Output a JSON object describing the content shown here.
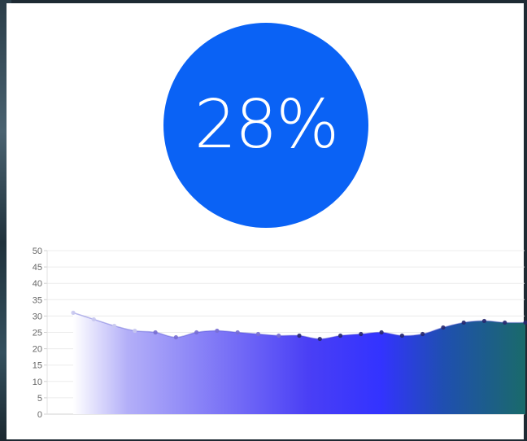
{
  "gauge": {
    "value_label": "28%",
    "value": 28,
    "color": "#0a62f5"
  },
  "chart_data": {
    "type": "area",
    "title": "",
    "xlabel": "",
    "ylabel": "",
    "ylim": [
      0,
      50
    ],
    "yticks": [
      0,
      5,
      10,
      15,
      20,
      25,
      30,
      35,
      40,
      45,
      50
    ],
    "grid": true,
    "series": [
      {
        "values": [
          31,
          29,
          27,
          25.5,
          25,
          23.5,
          25,
          25.5,
          25,
          24.5,
          24,
          24,
          23,
          24,
          24.5,
          25,
          24,
          24.5,
          26.5,
          28,
          28.5,
          28,
          28
        ]
      }
    ],
    "fill_gradient": [
      "#ffffff",
      "#b3aff8",
      "#4a3ff5",
      "#3333ff",
      "#1f4fb0",
      "#1a6a6a"
    ]
  }
}
